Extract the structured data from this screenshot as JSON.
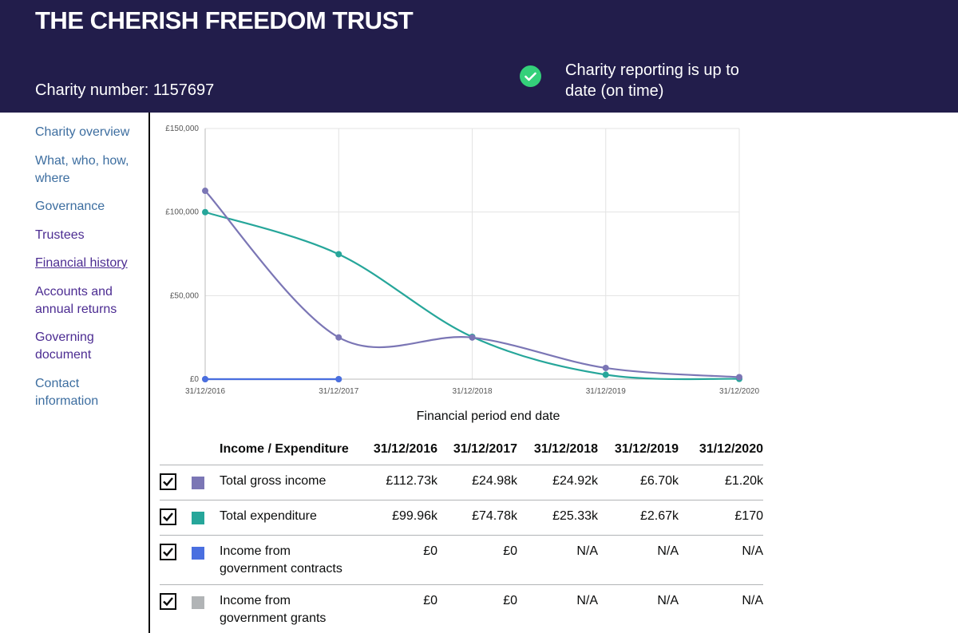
{
  "header": {
    "title": "THE CHERISH FREEDOM TRUST",
    "charity_number": "Charity number: 1157697",
    "status": "Charity reporting is up to date (on time)",
    "status_icon": "check-circle-icon"
  },
  "sidebar": {
    "items": [
      {
        "label": "Charity overview"
      },
      {
        "label": "What, who, how, where"
      },
      {
        "label": "Governance"
      },
      {
        "label": "Trustees"
      },
      {
        "label": "Financial history"
      },
      {
        "label": "Accounts and annual returns"
      },
      {
        "label": "Governing document"
      },
      {
        "label": "Contact information"
      }
    ]
  },
  "chart_data": {
    "type": "line",
    "xlabel": "Financial period end date",
    "ylabel": "",
    "categories": [
      "31/12/2016",
      "31/12/2017",
      "31/12/2018",
      "31/12/2019",
      "31/12/2020"
    ],
    "ylim": [
      0,
      150000
    ],
    "yticks": [
      0,
      50000,
      100000,
      150000
    ],
    "ytick_labels": [
      "£0",
      "£50,000",
      "£100,000",
      "£150,000"
    ],
    "grid": true,
    "series": [
      {
        "name": "Total gross income",
        "color": "#7b76b5",
        "values": [
          112730,
          24980,
          24920,
          6700,
          1200
        ]
      },
      {
        "name": "Total expenditure",
        "color": "#26a69a",
        "values": [
          99960,
          74780,
          25330,
          2670,
          170
        ]
      },
      {
        "name": "Income from government contracts",
        "color": "#4a6fe0",
        "values": [
          0,
          0,
          null,
          null,
          null
        ]
      },
      {
        "name": "Income from government grants",
        "color": "#b1b4b6",
        "values": [
          0,
          0,
          null,
          null,
          null
        ]
      }
    ]
  },
  "table": {
    "header": [
      "Income / Expenditure",
      "31/12/2016",
      "31/12/2017",
      "31/12/2018",
      "31/12/2019",
      "31/12/2020"
    ],
    "rows": [
      {
        "label": "Total gross income",
        "color": "#7b76b5",
        "checked": true,
        "values": [
          "£112.73k",
          "£24.98k",
          "£24.92k",
          "£6.70k",
          "£1.20k"
        ]
      },
      {
        "label": "Total expenditure",
        "color": "#26a69a",
        "checked": true,
        "values": [
          "£99.96k",
          "£74.78k",
          "£25.33k",
          "£2.67k",
          "£170"
        ]
      },
      {
        "label": "Income from government contracts",
        "color": "#4a6fe0",
        "checked": true,
        "values": [
          "£0",
          "£0",
          "N/A",
          "N/A",
          "N/A"
        ]
      },
      {
        "label": "Income from government grants",
        "color": "#b1b4b6",
        "checked": true,
        "values": [
          "£0",
          "£0",
          "N/A",
          "N/A",
          "N/A"
        ]
      }
    ]
  }
}
